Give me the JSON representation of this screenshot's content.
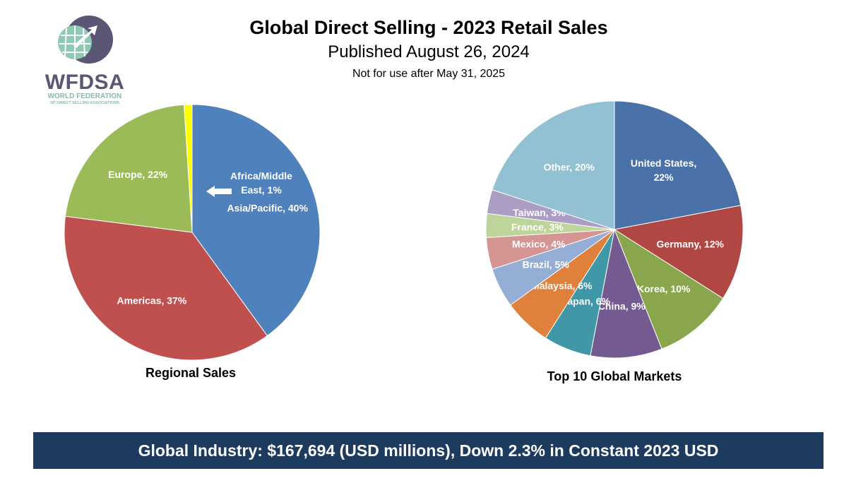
{
  "header": {
    "title": "Global Direct Selling - 2023 Retail Sales",
    "subtitle": "Published August 26, 2024",
    "note": "Not for use after May 31, 2025"
  },
  "logo": {
    "word": "WFDSA",
    "line1": "WORLD FEDERATION",
    "line2": "OF DIRECT SELLING ASSOCIATIONS"
  },
  "footer": {
    "banner": "Global Industry: $167,694 (USD millions), Down 2.3% in Constant 2023 USD",
    "banner_color": "#1d3a5f"
  },
  "chart_data": [
    {
      "type": "pie",
      "title": "Regional Sales",
      "slices": [
        {
          "name": "Asia/Pacific",
          "value": 40,
          "label": "Asia/Pacific, 40%",
          "color": "#4f81bd"
        },
        {
          "name": "Americas",
          "value": 37,
          "label": "Americas, 37%",
          "color": "#c0504d"
        },
        {
          "name": "Europe",
          "value": 22,
          "label": "Europe, 22%",
          "color": "#9bbb59"
        },
        {
          "name": "Africa/Middle East",
          "value": 1,
          "label": [
            "Africa/Middle",
            "East, 1%"
          ],
          "color": "#ffff00"
        }
      ]
    },
    {
      "type": "pie",
      "title": "Top 10 Global Markets",
      "slices": [
        {
          "name": "United States",
          "value": 22,
          "label": [
            "United States,",
            "22%"
          ],
          "color": "#4a72a8"
        },
        {
          "name": "Germany",
          "value": 12,
          "label": "Germany, 12%",
          "color": "#b04743"
        },
        {
          "name": "Korea",
          "value": 10,
          "label": "Korea, 10%",
          "color": "#8aa64c"
        },
        {
          "name": "China",
          "value": 9,
          "label": "China, 9%",
          "color": "#735a91"
        },
        {
          "name": "Japan",
          "value": 6,
          "label": "Japan, 6%",
          "color": "#3f97a8"
        },
        {
          "name": "Malaysia",
          "value": 6,
          "label": "Malaysia, 6%",
          "color": "#e0803d"
        },
        {
          "name": "Brazil",
          "value": 5,
          "label": "Brazil, 5%",
          "color": "#94aed6"
        },
        {
          "name": "Mexico",
          "value": 4,
          "label": "Mexico, 4%",
          "color": "#d49593"
        },
        {
          "name": "France",
          "value": 3,
          "label": "France, 3%",
          "color": "#bdd49a"
        },
        {
          "name": "Taiwan",
          "value": 3,
          "label": "Taiwan, 3%",
          "color": "#ab9dc4"
        },
        {
          "name": "Other",
          "value": 20,
          "label": "Other, 20%",
          "color": "#92c1d4"
        }
      ]
    }
  ]
}
